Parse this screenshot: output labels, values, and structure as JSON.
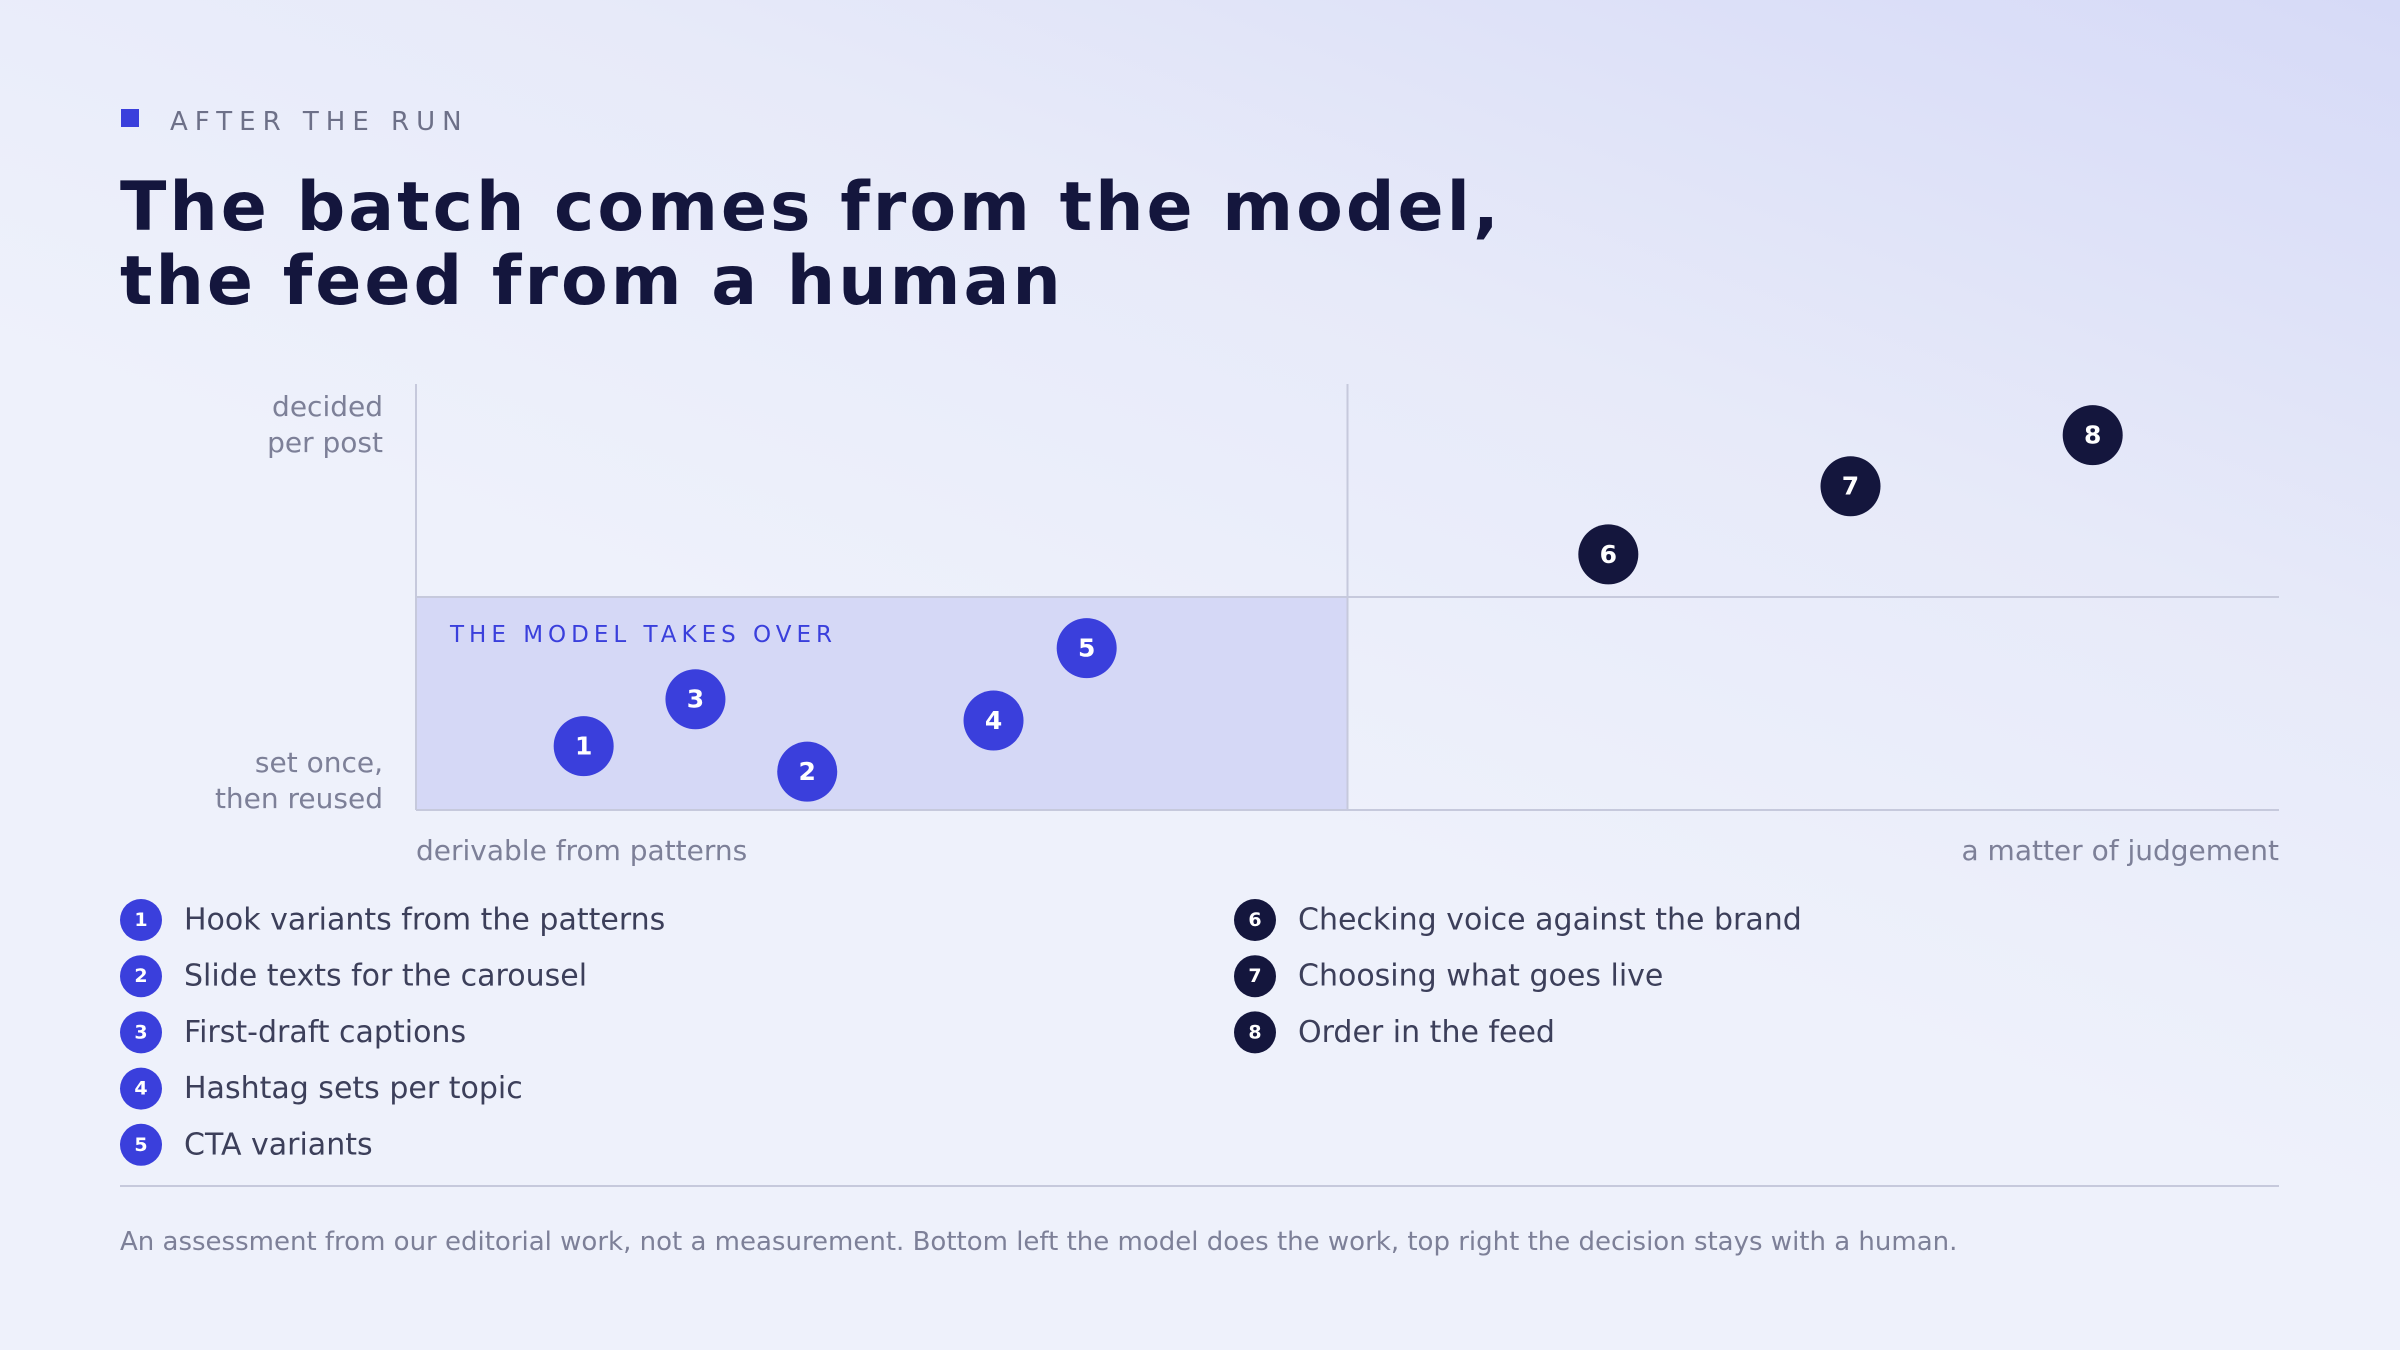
{
  "chart_data": {
    "type": "scatter",
    "eyebrow": "AFTER THE RUN",
    "title": [
      "The batch comes from the model,",
      "the feed from a human"
    ],
    "y_axis_labels": {
      "top": [
        "decided",
        "per post"
      ],
      "bottom": [
        "set once,",
        "then reused"
      ]
    },
    "x_axis_labels": {
      "left": "derivable from patterns",
      "right": "a matter of judgement"
    },
    "region_label": "THE MODEL TAKES OVER",
    "xlim": [
      0,
      100
    ],
    "ylim": [
      0,
      100
    ],
    "split": {
      "x": 50,
      "y": 50
    },
    "region_color": "#d5d8f6",
    "points": [
      {
        "label": "1",
        "text": "Hook variants from the patterns",
        "x": 9,
        "y": 15,
        "color": "#3a3fdc"
      },
      {
        "label": "2",
        "text": "Slide texts for the carousel",
        "x": 21,
        "y": 9,
        "color": "#3a3fdc"
      },
      {
        "label": "3",
        "text": "First-draft captions",
        "x": 15,
        "y": 26,
        "color": "#3a3fdc"
      },
      {
        "label": "4",
        "text": "Hashtag sets per topic",
        "x": 31,
        "y": 21,
        "color": "#3a3fdc"
      },
      {
        "label": "5",
        "text": "CTA variants",
        "x": 36,
        "y": 38,
        "color": "#3a3fdc"
      },
      {
        "label": "6",
        "text": "Checking voice against the brand",
        "x": 64,
        "y": 60,
        "color": "#14163d"
      },
      {
        "label": "7",
        "text": "Choosing what goes live",
        "x": 77,
        "y": 76,
        "color": "#14163d"
      },
      {
        "label": "8",
        "text": "Order in the feed",
        "x": 90,
        "y": 88,
        "color": "#14163d"
      }
    ],
    "footnote": "An assessment from our editorial work, not a measurement. Bottom left the model does the work, top right the decision stays with a human."
  }
}
